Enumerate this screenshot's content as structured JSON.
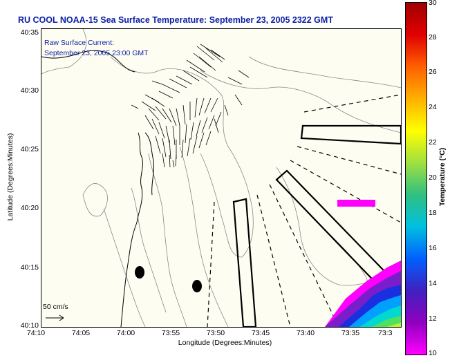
{
  "title": "RU COOL  NOAA-15  Sea Surface Temperature:  September 23, 2005 2322 GMT",
  "current_label": {
    "line1": "Raw Surface Current:",
    "line2": "September 23, 2005 23:00 GMT"
  },
  "axes": {
    "x_title": "Longitude (Degrees:Minutes)",
    "y_title": "Latitude (Degrees:Minutes)",
    "x_ticks": [
      "74:10",
      "74:05",
      "74:00",
      "73:55",
      "73:50",
      "73:45",
      "73:40",
      "73:35",
      "73:3"
    ],
    "y_ticks": [
      "40:35",
      "40:30",
      "40:25",
      "40:20",
      "40:15",
      "40:10"
    ]
  },
  "colorbar": {
    "title": "Temperature (°C)",
    "ticks": [
      "30",
      "28",
      "26",
      "24",
      "22",
      "20",
      "18",
      "16",
      "14",
      "12",
      "10"
    ],
    "colors": [
      "#a00000",
      "#e00000",
      "#ff6000",
      "#ffb000",
      "#ffff00",
      "#a0e040",
      "#30c080",
      "#00c0e0",
      "#0060ff",
      "#4020c0",
      "#9000c0",
      "#ff00ff"
    ]
  },
  "scale_bar": {
    "label": "50 cm/s"
  },
  "map_colors": {
    "land": "#fefdf2",
    "coast": "#000000",
    "bathymetry": "#888888",
    "track": "#000000"
  }
}
